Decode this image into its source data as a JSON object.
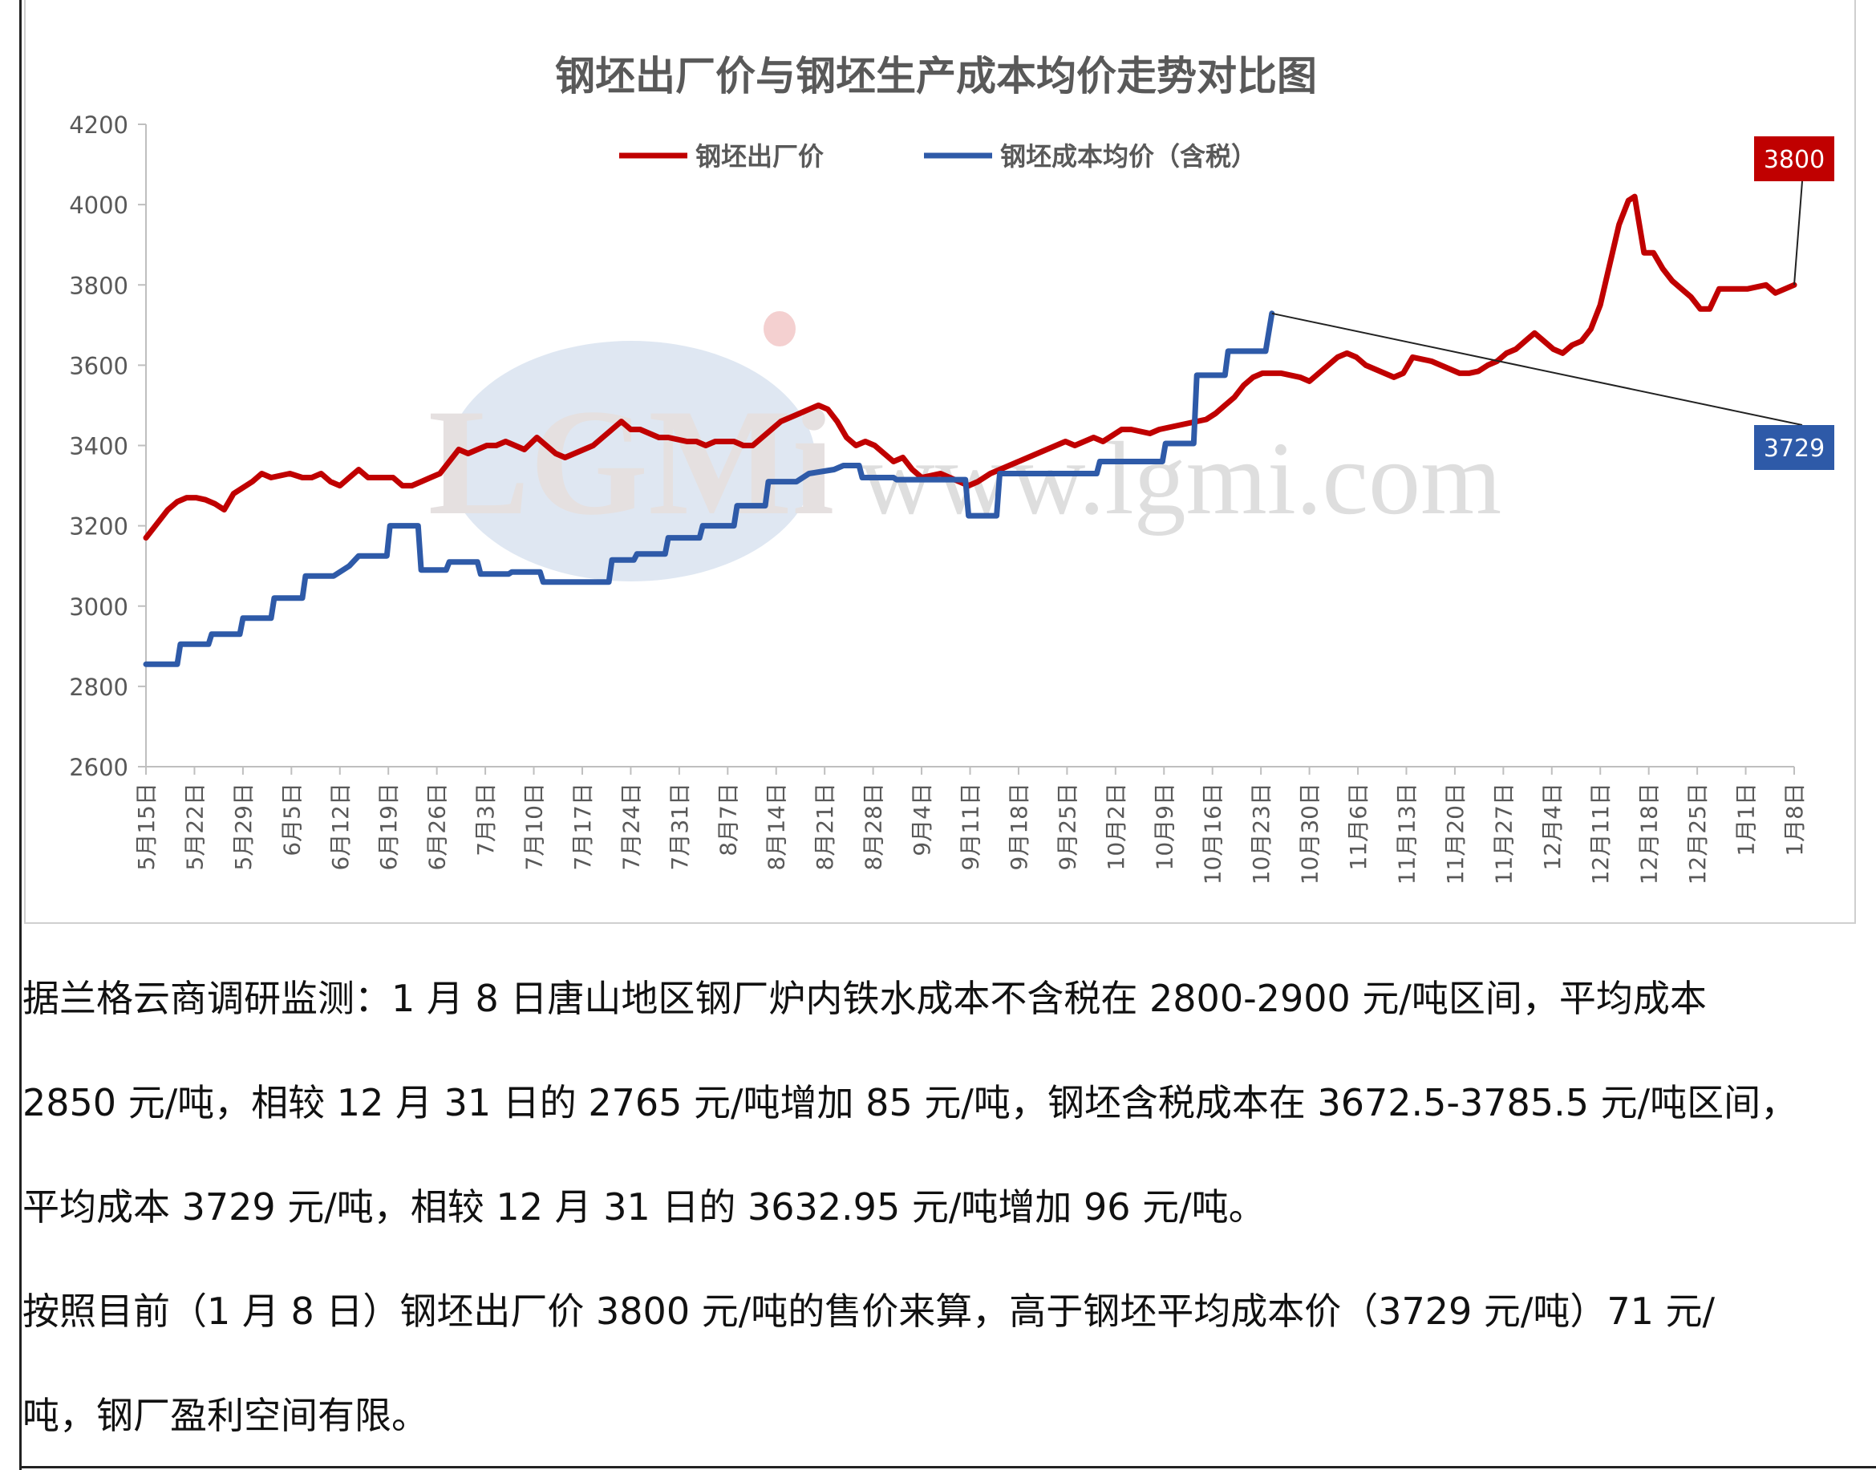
{
  "chart_data": {
    "type": "line",
    "title": "钢坯出厂价与钢坯生产成本均价走势对比图",
    "xlabel": "",
    "ylabel": "",
    "ylim": [
      2600,
      4200
    ],
    "yticks": [
      "4200",
      "4000",
      "3800",
      "3600",
      "3400",
      "3200",
      "3000",
      "2800",
      "2600"
    ],
    "categories": [
      "5月15日",
      "5月22日",
      "5月29日",
      "6月5日",
      "6月12日",
      "6月19日",
      "6月26日",
      "7月3日",
      "7月10日",
      "7月17日",
      "7月24日",
      "7月31日",
      "8月7日",
      "8月14日",
      "8月21日",
      "8月28日",
      "9月4日",
      "9月11日",
      "9月18日",
      "9月25日",
      "10月2日",
      "10月9日",
      "10月16日",
      "10月23日",
      "10月30日",
      "11月6日",
      "11月13日",
      "11月20日",
      "11月27日",
      "12月4日",
      "12月11日",
      "12月18日",
      "12月25日",
      "1月1日",
      "1月8日"
    ],
    "legend_position": "top",
    "grid": false,
    "series": [
      {
        "name": "钢坯出厂价",
        "color": "#c00000",
        "points": [
          [
            0,
            3170
          ],
          [
            0.3,
            3200
          ],
          [
            0.7,
            3240
          ],
          [
            1,
            3260
          ],
          [
            1.3,
            3270
          ],
          [
            1.6,
            3270
          ],
          [
            1.9,
            3265
          ],
          [
            2.2,
            3255
          ],
          [
            2.5,
            3240
          ],
          [
            2.8,
            3280
          ],
          [
            3.1,
            3295
          ],
          [
            3.4,
            3310
          ],
          [
            3.7,
            3330
          ],
          [
            4,
            3320
          ],
          [
            4.3,
            3325
          ],
          [
            4.6,
            3330
          ],
          [
            5,
            3320
          ],
          [
            5.3,
            3320
          ],
          [
            5.6,
            3330
          ],
          [
            5.9,
            3310
          ],
          [
            6.2,
            3300
          ],
          [
            6.5,
            3320
          ],
          [
            6.8,
            3340
          ],
          [
            7.1,
            3320
          ],
          [
            7.5,
            3320
          ],
          [
            7.9,
            3320
          ],
          [
            8.2,
            3300
          ],
          [
            8.5,
            3300
          ],
          [
            8.8,
            3310
          ],
          [
            9.1,
            3320
          ],
          [
            9.4,
            3330
          ],
          [
            9.7,
            3360
          ],
          [
            10,
            3390
          ],
          [
            10.3,
            3380
          ],
          [
            10.6,
            3390
          ],
          [
            10.9,
            3400
          ],
          [
            11.2,
            3400
          ],
          [
            11.5,
            3410
          ],
          [
            11.8,
            3400
          ],
          [
            12.1,
            3390
          ],
          [
            12.5,
            3420
          ],
          [
            12.8,
            3400
          ],
          [
            13.1,
            3380
          ],
          [
            13.4,
            3370
          ],
          [
            13.7,
            3380
          ],
          [
            14,
            3390
          ],
          [
            14.3,
            3400
          ],
          [
            14.6,
            3420
          ],
          [
            14.9,
            3440
          ],
          [
            15.2,
            3460
          ],
          [
            15.5,
            3440
          ],
          [
            15.8,
            3440
          ],
          [
            16.1,
            3430
          ],
          [
            16.4,
            3420
          ],
          [
            16.7,
            3420
          ],
          [
            17,
            3415
          ],
          [
            17.3,
            3410
          ],
          [
            17.6,
            3410
          ],
          [
            17.9,
            3400
          ],
          [
            18.2,
            3410
          ],
          [
            18.5,
            3410
          ],
          [
            18.8,
            3410
          ],
          [
            19.1,
            3400
          ],
          [
            19.4,
            3400
          ],
          [
            19.7,
            3420
          ],
          [
            20,
            3440
          ],
          [
            20.3,
            3460
          ],
          [
            20.6,
            3470
          ],
          [
            20.9,
            3480
          ],
          [
            21.2,
            3490
          ],
          [
            21.5,
            3500
          ],
          [
            21.8,
            3490
          ],
          [
            22.1,
            3460
          ],
          [
            22.4,
            3420
          ],
          [
            22.7,
            3400
          ],
          [
            23,
            3410
          ],
          [
            23.3,
            3400
          ],
          [
            23.6,
            3380
          ],
          [
            23.9,
            3360
          ],
          [
            24.2,
            3370
          ],
          [
            24.5,
            3340
          ],
          [
            24.8,
            3320
          ],
          [
            25.1,
            3325
          ],
          [
            25.4,
            3330
          ],
          [
            25.7,
            3320
          ],
          [
            26,
            3310
          ],
          [
            26.3,
            3300
          ],
          [
            26.6,
            3310
          ],
          [
            27,
            3330
          ],
          [
            27.3,
            3340
          ],
          [
            27.6,
            3350
          ],
          [
            27.9,
            3360
          ],
          [
            28.2,
            3370
          ],
          [
            28.5,
            3380
          ],
          [
            28.8,
            3390
          ],
          [
            29.1,
            3400
          ],
          [
            29.4,
            3410
          ],
          [
            29.7,
            3400
          ],
          [
            30,
            3410
          ],
          [
            30.3,
            3420
          ],
          [
            30.6,
            3410
          ],
          [
            30.9,
            3425
          ],
          [
            31.2,
            3440
          ],
          [
            31.5,
            3440
          ],
          [
            31.8,
            3435
          ],
          [
            32.1,
            3430
          ],
          [
            32.4,
            3440
          ],
          [
            32.7,
            3445
          ],
          [
            33,
            3450
          ],
          [
            33.3,
            3455
          ],
          [
            33.6,
            3460
          ],
          [
            33.9,
            3465
          ],
          [
            34.2,
            3480
          ],
          [
            34.5,
            3500
          ],
          [
            34.8,
            3520
          ],
          [
            35.1,
            3550
          ],
          [
            35.4,
            3570
          ],
          [
            35.7,
            3580
          ],
          [
            36,
            3580
          ],
          [
            36.3,
            3580
          ],
          [
            36.6,
            3575
          ],
          [
            36.9,
            3570
          ],
          [
            37.2,
            3560
          ],
          [
            37.5,
            3580
          ],
          [
            37.8,
            3600
          ],
          [
            38.1,
            3620
          ],
          [
            38.4,
            3630
          ],
          [
            38.7,
            3620
          ],
          [
            39,
            3600
          ],
          [
            39.3,
            3590
          ],
          [
            39.6,
            3580
          ],
          [
            39.9,
            3570
          ],
          [
            40.2,
            3580
          ],
          [
            40.5,
            3620
          ],
          [
            40.8,
            3615
          ],
          [
            41.1,
            3610
          ],
          [
            41.4,
            3600
          ],
          [
            41.7,
            3590
          ],
          [
            42,
            3580
          ],
          [
            42.3,
            3580
          ],
          [
            42.6,
            3585
          ],
          [
            42.9,
            3600
          ],
          [
            43.2,
            3610
          ],
          [
            43.5,
            3630
          ],
          [
            43.8,
            3640
          ],
          [
            44.1,
            3660
          ],
          [
            44.4,
            3680
          ],
          [
            44.7,
            3660
          ],
          [
            45,
            3640
          ],
          [
            45.3,
            3630
          ],
          [
            45.6,
            3650
          ],
          [
            45.9,
            3660
          ],
          [
            46.2,
            3690
          ],
          [
            46.5,
            3750
          ],
          [
            46.8,
            3850
          ],
          [
            47.1,
            3950
          ],
          [
            47.4,
            4010
          ],
          [
            47.6,
            4020
          ],
          [
            47.9,
            3880
          ],
          [
            48.2,
            3880
          ],
          [
            48.5,
            3840
          ],
          [
            48.8,
            3810
          ],
          [
            49.1,
            3790
          ],
          [
            49.4,
            3770
          ],
          [
            49.7,
            3740
          ],
          [
            50,
            3740
          ],
          [
            50.3,
            3790
          ],
          [
            50.6,
            3790
          ],
          [
            50.9,
            3790
          ],
          [
            51.2,
            3790
          ],
          [
            51.5,
            3795
          ],
          [
            51.8,
            3800
          ],
          [
            52.1,
            3780
          ],
          [
            52.4,
            3790
          ],
          [
            52.7,
            3800
          ]
        ]
      },
      {
        "name": "钢坯成本均价（含税）",
        "color": "#2e5aa8",
        "points": [
          [
            0,
            2855
          ],
          [
            1,
            2855
          ],
          [
            1.1,
            2905
          ],
          [
            2,
            2905
          ],
          [
            2.1,
            2930
          ],
          [
            3,
            2930
          ],
          [
            3.1,
            2970
          ],
          [
            4,
            2970
          ],
          [
            4.1,
            3020
          ],
          [
            5,
            3020
          ],
          [
            5.1,
            3075
          ],
          [
            6,
            3075
          ],
          [
            6.5,
            3100
          ],
          [
            6.8,
            3125
          ],
          [
            7.7,
            3125
          ],
          [
            7.8,
            3200
          ],
          [
            8.7,
            3200
          ],
          [
            8.8,
            3090
          ],
          [
            9.6,
            3090
          ],
          [
            9.7,
            3110
          ],
          [
            10.6,
            3110
          ],
          [
            10.7,
            3080
          ],
          [
            11.6,
            3080
          ],
          [
            11.7,
            3085
          ],
          [
            12.6,
            3085
          ],
          [
            12.7,
            3060
          ],
          [
            14.8,
            3060
          ],
          [
            14.9,
            3115
          ],
          [
            15.6,
            3115
          ],
          [
            15.7,
            3130
          ],
          [
            16.6,
            3130
          ],
          [
            16.7,
            3170
          ],
          [
            17.7,
            3170
          ],
          [
            17.8,
            3200
          ],
          [
            18.8,
            3200
          ],
          [
            18.9,
            3250
          ],
          [
            19.8,
            3250
          ],
          [
            19.9,
            3310
          ],
          [
            20.8,
            3310
          ],
          [
            21.2,
            3330
          ],
          [
            22,
            3340
          ],
          [
            22.3,
            3350
          ],
          [
            22.8,
            3350
          ],
          [
            22.9,
            3320
          ],
          [
            23.9,
            3320
          ],
          [
            24,
            3315
          ],
          [
            26.2,
            3315
          ],
          [
            26.3,
            3225
          ],
          [
            27.2,
            3225
          ],
          [
            27.3,
            3330
          ],
          [
            30.4,
            3330
          ],
          [
            30.5,
            3360
          ],
          [
            32.5,
            3360
          ],
          [
            32.6,
            3405
          ],
          [
            33.5,
            3405
          ],
          [
            33.6,
            3575
          ],
          [
            34.5,
            3575
          ],
          [
            34.6,
            3635
          ],
          [
            35.8,
            3635
          ],
          [
            36,
            3729
          ]
        ]
      }
    ],
    "end_labels": [
      {
        "series": "钢坯出厂价",
        "text": "3800",
        "bg": "#c00000"
      },
      {
        "series": "钢坯成本均价（含税）",
        "text": "3729",
        "bg": "#2e5aa8"
      }
    ]
  },
  "paragraphs": [
    "据兰格云商调研监测：1 月 8 日唐山地区钢厂炉内铁水成本不含税在 2800-2900 元/吨区间，平均成本",
    "2850 元/吨，相较 12 月 31 日的 2765 元/吨增加 85 元/吨，钢坯含税成本在 3672.5-3785.5 元/吨区间，",
    "平均成本 3729 元/吨，相较 12 月 31 日的 3632.95 元/吨增加 96 元/吨。",
    "按照目前（1 月 8 日）钢坯出厂价 3800 元/吨的售价来算，高于钢坯平均成本价（3729 元/吨）71 元/",
    "吨，钢厂盈利空间有限。"
  ],
  "watermark": {
    "logo_text": "LGMi",
    "url_text": "www.lgmi.com"
  }
}
